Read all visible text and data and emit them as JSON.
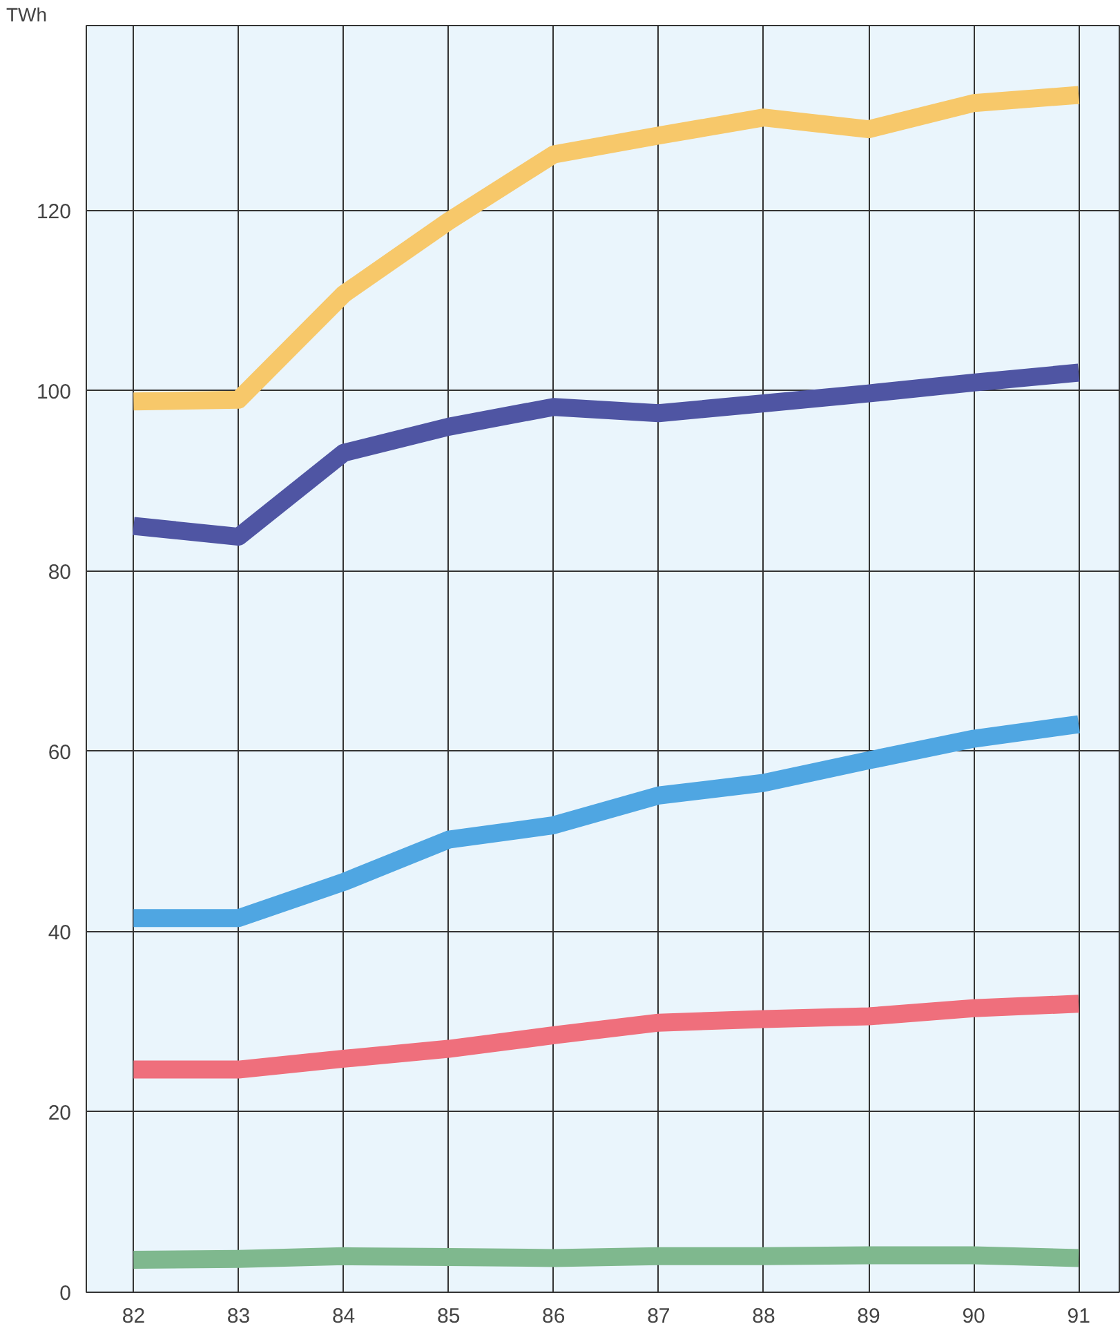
{
  "chart_data": {
    "type": "line",
    "ylabel": "TWh",
    "x": [
      82,
      83,
      84,
      85,
      86,
      87,
      88,
      89,
      90,
      91
    ],
    "xlim": [
      81.55,
      91.4
    ],
    "xticks": [
      82,
      83,
      84,
      85,
      86,
      87,
      88,
      89,
      90,
      91
    ],
    "ylim": [
      0,
      140.5
    ],
    "yticks": [
      0,
      20,
      40,
      60,
      80,
      100,
      120
    ],
    "grid": true,
    "marker": "none",
    "line_style": "solid",
    "series": [
      {
        "color": "#f7c86a",
        "values": [
          98.8,
          99,
          110.7,
          118.8,
          126.2,
          128.3,
          130.3,
          129,
          131.9,
          132.8
        ]
      },
      {
        "color": "#4f55a3",
        "values": [
          85,
          83.8,
          93.1,
          96,
          98.2,
          97.5,
          98.6,
          99.7,
          100.9,
          102
        ]
      },
      {
        "color": "#4fa6e2",
        "values": [
          41.5,
          41.5,
          45.5,
          50.2,
          51.8,
          55.1,
          56.5,
          59,
          61.4,
          63
        ]
      },
      {
        "color": "#ef6f7c",
        "values": [
          24.7,
          24.7,
          25.9,
          27,
          28.5,
          29.9,
          30.3,
          30.6,
          31.5,
          32
        ]
      },
      {
        "color": "#7fb88e",
        "values": [
          3.6,
          3.7,
          4,
          3.9,
          3.8,
          4,
          4,
          4.1,
          4.1,
          3.8
        ]
      }
    ]
  }
}
